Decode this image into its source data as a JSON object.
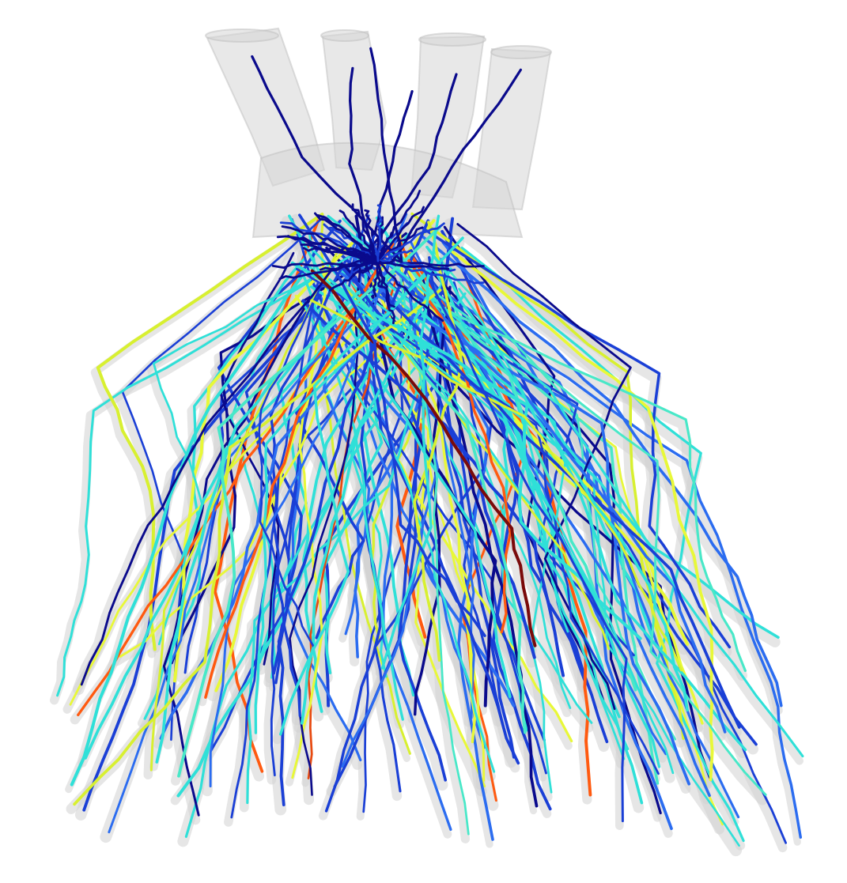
{
  "figure": {
    "subject": "cardiac-fiber-tractography",
    "colormap": [
      "#0a0a8c",
      "#1a3fd6",
      "#2b6cf0",
      "#2fe0d8",
      "#48e8c8",
      "#d8f030",
      "#e8f838",
      "#ff5a10",
      "#e84a10",
      "#7a0a0a"
    ]
  }
}
